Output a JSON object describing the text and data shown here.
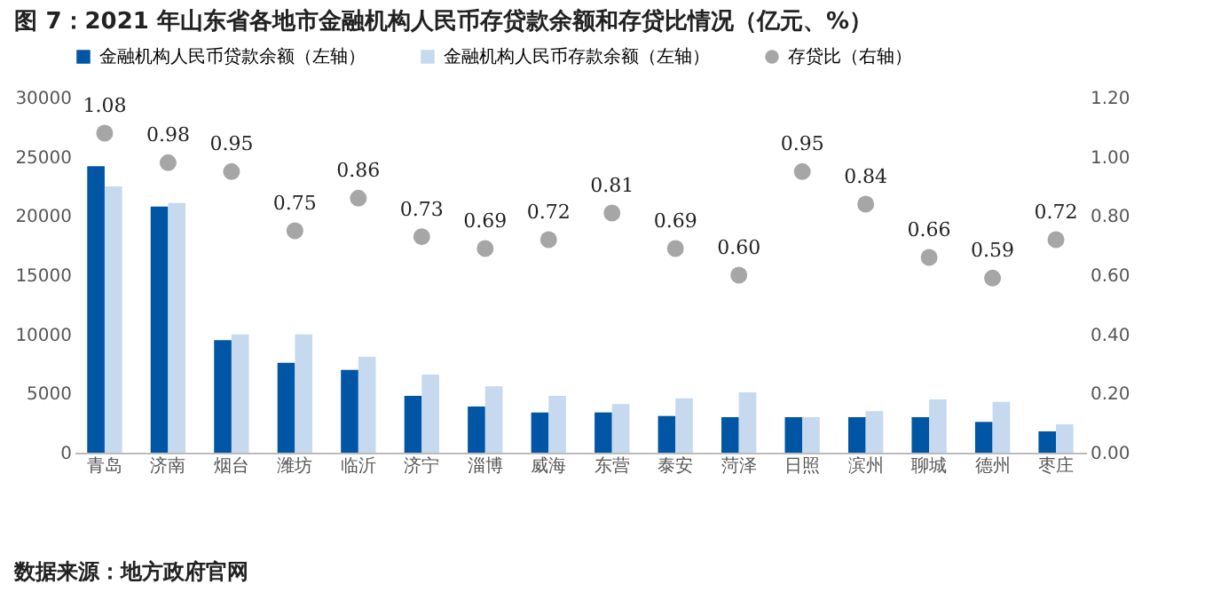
{
  "chart_data": {
    "type": "bar",
    "title": "图 7：2021 年山东省各地市金融机构人民币存贷款余额和存贷比情况（亿元、%）",
    "categories": [
      "青岛",
      "济南",
      "烟台",
      "潍坊",
      "临沂",
      "济宁",
      "淄博",
      "威海",
      "东营",
      "泰安",
      "菏泽",
      "日照",
      "滨州",
      "聊城",
      "德州",
      "枣庄"
    ],
    "series": [
      {
        "name": "金融机构人民币贷款余额（左轴）",
        "color": "#0055a5",
        "values": [
          24200,
          20800,
          9500,
          7600,
          7000,
          4800,
          3900,
          3400,
          3400,
          3100,
          3000,
          3000,
          3000,
          3000,
          2600,
          1800
        ]
      },
      {
        "name": "金融机构人民币存款余额（左轴）",
        "color": "#c6d9ee",
        "values": [
          22500,
          21100,
          10000,
          10000,
          8100,
          6600,
          5600,
          4800,
          4100,
          4600,
          5100,
          3000,
          3500,
          4500,
          4300,
          2400
        ]
      },
      {
        "name": "存贷比（右轴）",
        "type": "scatter",
        "axis": "y2",
        "color": "#a6a6a6",
        "values": [
          1.08,
          0.98,
          0.95,
          0.75,
          0.86,
          0.73,
          0.69,
          0.72,
          0.81,
          0.69,
          0.6,
          0.95,
          0.84,
          0.66,
          0.59,
          0.72
        ],
        "value_labels": [
          "1.08",
          "0.98",
          "0.95",
          "0.75",
          "0.86",
          "0.73",
          "0.69",
          "0.72",
          "0.81",
          "0.69",
          "0.60",
          "0.95",
          "0.84",
          "0.66",
          "0.59",
          "0.72"
        ]
      }
    ],
    "ylim": [
      0,
      30000
    ],
    "yticks": [
      0,
      5000,
      10000,
      15000,
      20000,
      25000,
      30000
    ],
    "y2lim": [
      0,
      1.2
    ],
    "y2ticks": [
      {
        "value": 0,
        "label": "0.00"
      },
      {
        "value": 0.2,
        "label": "0.20"
      },
      {
        "value": 0.4,
        "label": "0.40"
      },
      {
        "value": 0.6,
        "label": "0.60"
      },
      {
        "value": 0.8,
        "label": "0.80"
      },
      {
        "value": 1,
        "label": "1.00"
      },
      {
        "value": 1.2,
        "label": "1.20"
      }
    ],
    "legend": "top",
    "marker": "circle",
    "grid": false,
    "annotations": [
      "数据来源：地方政府官网"
    ]
  }
}
